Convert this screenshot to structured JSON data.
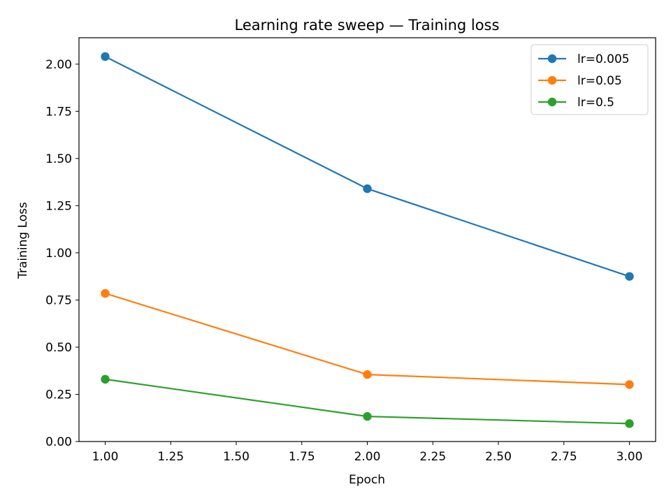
{
  "chart_data": {
    "type": "line",
    "title": "Learning rate sweep — Training loss",
    "xlabel": "Epoch",
    "ylabel": "Training Loss",
    "xlim": [
      0.9,
      3.1
    ],
    "ylim": [
      0.0,
      2.14
    ],
    "xticks": [
      1.0,
      1.25,
      1.5,
      1.75,
      2.0,
      2.25,
      2.5,
      2.75,
      3.0
    ],
    "xtick_labels": [
      "1.00",
      "1.25",
      "1.50",
      "1.75",
      "2.00",
      "2.25",
      "2.50",
      "2.75",
      "3.00"
    ],
    "yticks": [
      0.0,
      0.25,
      0.5,
      0.75,
      1.0,
      1.25,
      1.5,
      1.75,
      2.0
    ],
    "ytick_labels": [
      "0.00",
      "0.25",
      "0.50",
      "0.75",
      "1.00",
      "1.25",
      "1.50",
      "1.75",
      "2.00"
    ],
    "grid": false,
    "legend_position": "top-right",
    "x": [
      1,
      2,
      3
    ],
    "series": [
      {
        "name": "lr=0.005",
        "color": "#1f77b4",
        "values": [
          2.04,
          1.34,
          0.875
        ]
      },
      {
        "name": "lr=0.05",
        "color": "#ff7f0e",
        "values": [
          0.785,
          0.355,
          0.302
        ]
      },
      {
        "name": "lr=0.5",
        "color": "#2ca02c",
        "values": [
          0.33,
          0.133,
          0.095
        ]
      }
    ]
  }
}
